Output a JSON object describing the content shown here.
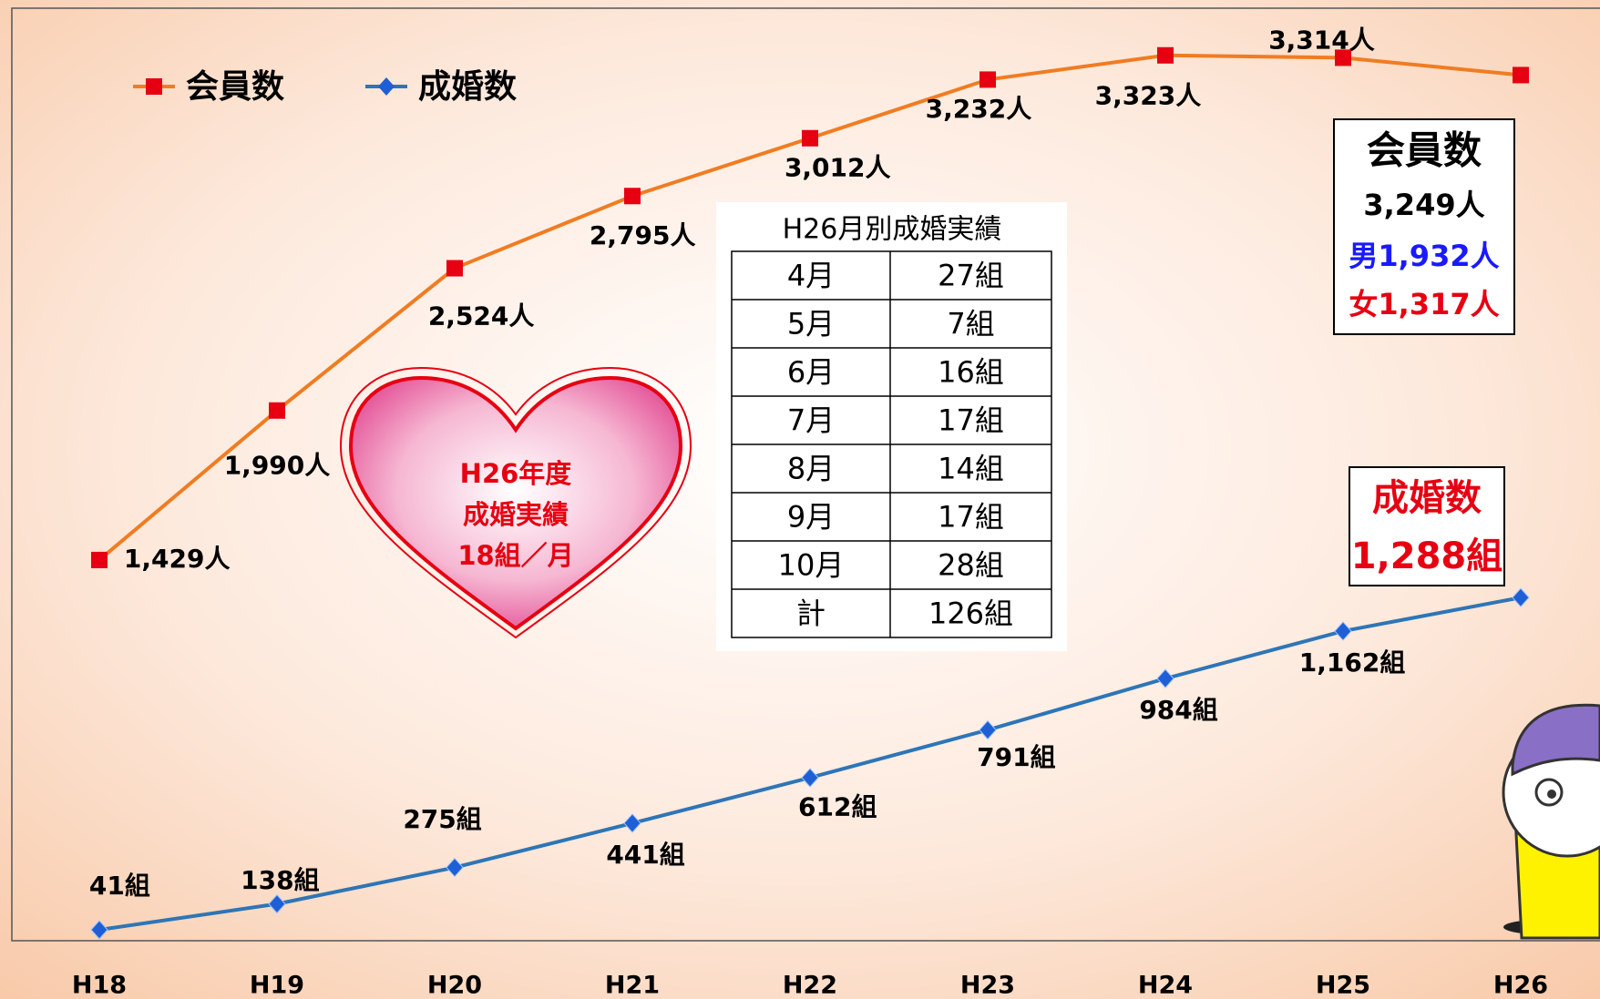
{
  "chart_data": {
    "type": "line",
    "categories": [
      "H18",
      "H19",
      "H20",
      "H21",
      "H22",
      "H23",
      "H24",
      "H25",
      "H26"
    ],
    "ylim": [
      0,
      3500
    ],
    "series": [
      {
        "name": "会員数",
        "color": "#f07c22",
        "marker_color": "#e60012",
        "marker": "square",
        "values": [
          1429,
          1990,
          2524,
          2795,
          3012,
          3232,
          3323,
          3314,
          3249
        ],
        "value_labels": [
          "1,429人",
          "1,990人",
          "2,524人",
          "2,795人",
          "3,012人",
          "3,232人",
          "3,323人",
          "3,314人",
          null
        ]
      },
      {
        "name": "成婚数",
        "color": "#2e75b6",
        "marker_color": "#1f5fd6",
        "marker": "diamond",
        "values": [
          41,
          138,
          275,
          441,
          612,
          791,
          984,
          1162,
          1288
        ],
        "value_labels": [
          "41組",
          "138組",
          "275組",
          "441組",
          "612組",
          "791組",
          "984組",
          "1,162組",
          null
        ]
      }
    ],
    "annotations": {
      "heart": [
        "H26年度",
        "成婚実績",
        "18組／月"
      ],
      "member_box": [
        "会員数",
        "3,249人",
        "男1,932人",
        "女1,317人"
      ],
      "marriage_box": [
        "成婚数",
        "1,288組"
      ]
    }
  },
  "table": {
    "title": "H26月別成婚実績",
    "rows": [
      [
        "4月",
        "27組"
      ],
      [
        "5月",
        "7組"
      ],
      [
        "6月",
        "16組"
      ],
      [
        "7月",
        "17組"
      ],
      [
        "8月",
        "14組"
      ],
      [
        "9月",
        "17組"
      ],
      [
        "10月",
        "28組"
      ],
      [
        "計",
        "126組"
      ]
    ]
  }
}
